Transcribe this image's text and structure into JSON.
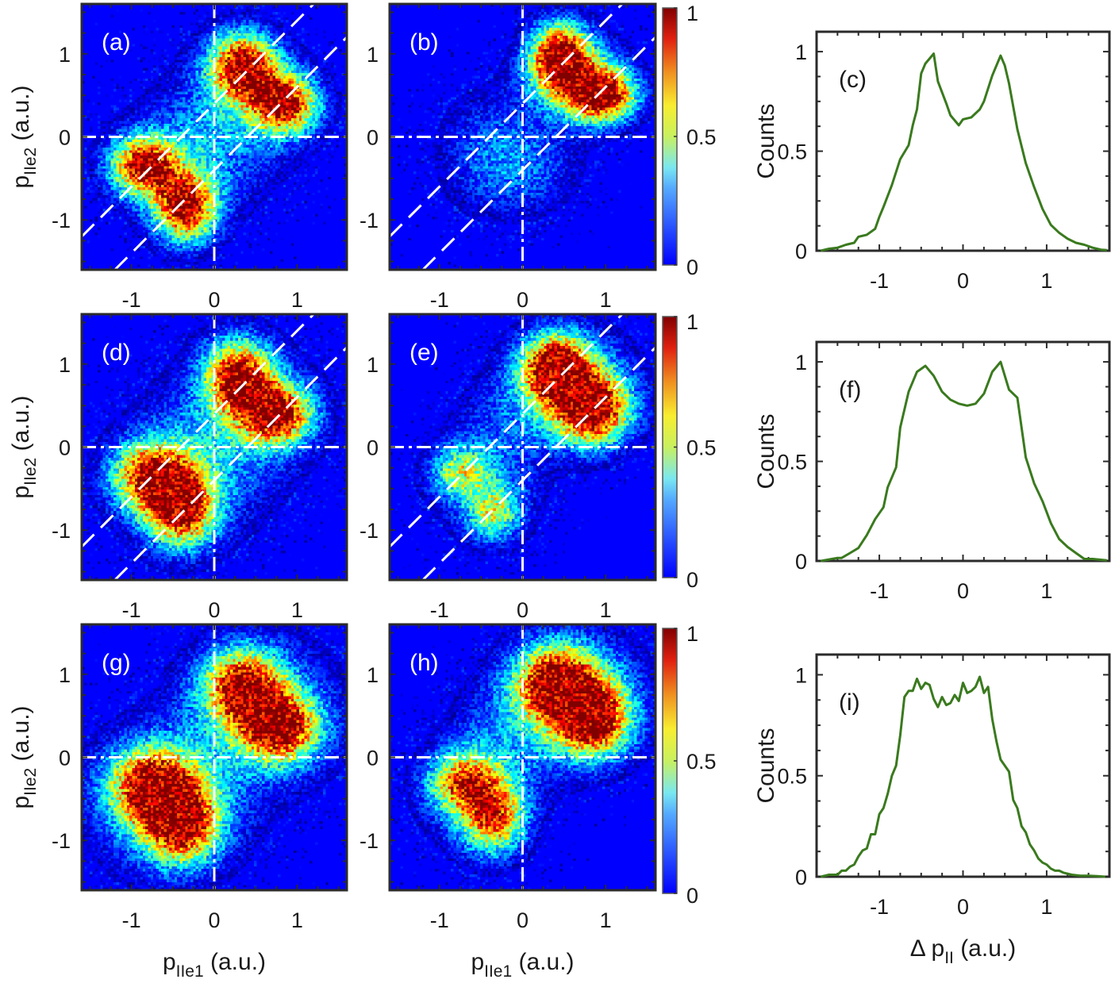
{
  "figure": {
    "heatmap_xlabel_main": "p",
    "heatmap_xlabel_sub": "IIe1",
    "heatmap_xlabel_unit": " (a.u.)",
    "heatmap_ylabel_main": "p",
    "heatmap_ylabel_sub": "IIe2",
    "heatmap_ylabel_unit": " (a.u.)",
    "line_xlabel_prefix": "Δ p",
    "line_xlabel_sub": "II",
    "line_xlabel_unit": " (a.u.)",
    "line_ylabel": "Counts",
    "line_color": "#3a7a1e",
    "guide_line_color": "#ffffff"
  },
  "chart_data": [
    {
      "panel": "(a)",
      "type": "heatmap",
      "xlabel": "p_IIe1 (a.u.)",
      "ylabel": "p_IIe2 (a.u.)",
      "xlim": [
        -1.6,
        1.6
      ],
      "ylim": [
        -1.6,
        1.6
      ],
      "xticks": [
        "-1",
        "0",
        "1"
      ],
      "yticks": [
        "-1",
        "0",
        "1"
      ],
      "colormap": "jet",
      "clim": [
        0,
        1
      ],
      "blobs": [
        {
          "x": 0.35,
          "y": 0.85,
          "sx": 0.28,
          "sy": 0.28,
          "amp": 0.95
        },
        {
          "x": 0.85,
          "y": 0.4,
          "sx": 0.28,
          "sy": 0.25,
          "amp": 0.9
        },
        {
          "x": -0.85,
          "y": -0.35,
          "sx": 0.28,
          "sy": 0.25,
          "amp": 0.9
        },
        {
          "x": -0.35,
          "y": -0.85,
          "sx": 0.25,
          "sy": 0.28,
          "amp": 0.95
        },
        {
          "x": 0.3,
          "y": 0.3,
          "sx": 0.55,
          "sy": 0.55,
          "amp": 0.2
        },
        {
          "x": -0.3,
          "y": -0.3,
          "sx": 0.55,
          "sy": 0.55,
          "amp": 0.2
        }
      ],
      "diagonal_offsets": [
        0.4,
        -0.4
      ],
      "show_colorbar": false,
      "show_diagonals": true
    },
    {
      "panel": "(b)",
      "type": "heatmap",
      "xlim": [
        -1.6,
        1.6
      ],
      "ylim": [
        -1.6,
        1.6
      ],
      "xticks": [
        "-1",
        "0",
        "1"
      ],
      "yticks": [
        "-1",
        "0",
        "1"
      ],
      "colormap": "jet",
      "clim": [
        0,
        1
      ],
      "colorbar_ticks": [
        "0",
        "0.5",
        "1"
      ],
      "blobs": [
        {
          "x": 0.45,
          "y": 0.95,
          "sx": 0.25,
          "sy": 0.28,
          "amp": 1.0
        },
        {
          "x": 0.95,
          "y": 0.5,
          "sx": 0.28,
          "sy": 0.22,
          "amp": 1.0
        },
        {
          "x": 0.65,
          "y": 0.7,
          "sx": 0.4,
          "sy": 0.35,
          "amp": 0.35
        },
        {
          "x": -0.35,
          "y": -0.2,
          "sx": 0.45,
          "sy": 0.5,
          "amp": 0.22
        },
        {
          "x": 0.2,
          "y": -0.4,
          "sx": 0.4,
          "sy": 0.35,
          "amp": 0.12
        }
      ],
      "diagonal_offsets": [
        0.4,
        -0.4
      ],
      "show_colorbar": true,
      "show_diagonals": true
    },
    {
      "panel": "(c)",
      "type": "line",
      "xlabel": "",
      "ylabel": "Counts",
      "xlim": [
        -1.75,
        1.75
      ],
      "ylim": [
        0,
        1.1
      ],
      "xticks": [
        "-1",
        "0",
        "1"
      ],
      "yticks": [
        "0",
        "0.5",
        "1"
      ],
      "x": [
        -1.7,
        -1.6,
        -1.5,
        -1.4,
        -1.3,
        -1.25,
        -1.15,
        -1.05,
        -1.0,
        -0.95,
        -0.85,
        -0.75,
        -0.65,
        -0.6,
        -0.55,
        -0.5,
        -0.45,
        -0.35,
        -0.3,
        -0.2,
        -0.15,
        -0.05,
        0.0,
        0.1,
        0.2,
        0.25,
        0.35,
        0.45,
        0.5,
        0.55,
        0.65,
        0.75,
        0.85,
        0.95,
        1.05,
        1.15,
        1.25,
        1.35,
        1.45,
        1.55,
        1.65,
        1.72
      ],
      "y": [
        0.0,
        0.01,
        0.015,
        0.03,
        0.04,
        0.07,
        0.08,
        0.11,
        0.17,
        0.22,
        0.33,
        0.46,
        0.53,
        0.63,
        0.71,
        0.89,
        0.94,
        0.99,
        0.85,
        0.74,
        0.68,
        0.63,
        0.66,
        0.67,
        0.71,
        0.75,
        0.88,
        0.98,
        0.93,
        0.84,
        0.61,
        0.44,
        0.32,
        0.21,
        0.13,
        0.09,
        0.06,
        0.04,
        0.03,
        0.015,
        0.005,
        0.003
      ],
      "color": "#3a7a1e"
    },
    {
      "panel": "(d)",
      "type": "heatmap",
      "xlabel": "",
      "ylabel": "p_IIe2 (a.u.)",
      "xlim": [
        -1.6,
        1.6
      ],
      "ylim": [
        -1.6,
        1.6
      ],
      "xticks": [
        "-1",
        "0",
        "1"
      ],
      "yticks": [
        "-1",
        "0",
        "1"
      ],
      "colormap": "jet",
      "clim": [
        0,
        1
      ],
      "blobs": [
        {
          "x": 0.3,
          "y": 0.85,
          "sx": 0.28,
          "sy": 0.3,
          "amp": 0.9
        },
        {
          "x": 0.75,
          "y": 0.4,
          "sx": 0.3,
          "sy": 0.25,
          "amp": 0.9
        },
        {
          "x": -0.75,
          "y": -0.35,
          "sx": 0.32,
          "sy": 0.28,
          "amp": 0.85
        },
        {
          "x": -0.4,
          "y": -0.75,
          "sx": 0.28,
          "sy": 0.3,
          "amp": 0.9
        },
        {
          "x": 0.35,
          "y": 0.35,
          "sx": 0.6,
          "sy": 0.6,
          "amp": 0.22
        },
        {
          "x": -0.35,
          "y": -0.35,
          "sx": 0.6,
          "sy": 0.6,
          "amp": 0.22
        }
      ],
      "diagonal_offsets": [
        0.4,
        -0.4
      ],
      "show_colorbar": false,
      "show_diagonals": true
    },
    {
      "panel": "(e)",
      "type": "heatmap",
      "xlim": [
        -1.6,
        1.6
      ],
      "ylim": [
        -1.6,
        1.6
      ],
      "xticks": [
        "-1",
        "0",
        "1"
      ],
      "yticks": [
        "-1",
        "0",
        "1"
      ],
      "colormap": "jet",
      "clim": [
        0,
        1
      ],
      "colorbar_ticks": [
        "0",
        "0.5",
        "1"
      ],
      "blobs": [
        {
          "x": 0.4,
          "y": 0.95,
          "sx": 0.28,
          "sy": 0.28,
          "amp": 0.95
        },
        {
          "x": 0.85,
          "y": 0.45,
          "sx": 0.3,
          "sy": 0.28,
          "amp": 0.9
        },
        {
          "x": 0.6,
          "y": 0.7,
          "sx": 0.5,
          "sy": 0.45,
          "amp": 0.4
        },
        {
          "x": -0.75,
          "y": -0.3,
          "sx": 0.25,
          "sy": 0.22,
          "amp": 0.45
        },
        {
          "x": -0.35,
          "y": -0.8,
          "sx": 0.22,
          "sy": 0.22,
          "amp": 0.45
        },
        {
          "x": -0.4,
          "y": -0.5,
          "sx": 0.45,
          "sy": 0.45,
          "amp": 0.18
        },
        {
          "x": -0.3,
          "y": 0.3,
          "sx": 0.4,
          "sy": 0.4,
          "amp": 0.12
        }
      ],
      "diagonal_offsets": [
        0.4,
        -0.4
      ],
      "show_colorbar": true,
      "show_diagonals": true
    },
    {
      "panel": "(f)",
      "type": "line",
      "xlabel": "",
      "ylabel": "Counts",
      "xlim": [
        -1.75,
        1.75
      ],
      "ylim": [
        0,
        1.1
      ],
      "xticks": [
        "-1",
        "0",
        "1"
      ],
      "yticks": [
        "0",
        "0.5",
        "1"
      ],
      "x": [
        -1.7,
        -1.5,
        -1.45,
        -1.35,
        -1.25,
        -1.15,
        -1.05,
        -0.95,
        -0.9,
        -0.8,
        -0.75,
        -0.65,
        -0.55,
        -0.45,
        -0.35,
        -0.25,
        -0.15,
        -0.05,
        0.05,
        0.15,
        0.25,
        0.35,
        0.45,
        0.55,
        0.65,
        0.75,
        0.85,
        0.95,
        1.05,
        1.15,
        1.25,
        1.35,
        1.45,
        1.55,
        1.72
      ],
      "y": [
        0.0,
        0.015,
        0.015,
        0.04,
        0.065,
        0.13,
        0.21,
        0.27,
        0.37,
        0.47,
        0.67,
        0.85,
        0.95,
        0.98,
        0.93,
        0.85,
        0.81,
        0.79,
        0.78,
        0.79,
        0.84,
        0.95,
        1.0,
        0.86,
        0.82,
        0.52,
        0.39,
        0.3,
        0.19,
        0.11,
        0.07,
        0.04,
        0.01,
        0.01,
        0.003
      ],
      "color": "#3a7a1e"
    },
    {
      "panel": "(g)",
      "type": "heatmap",
      "xlabel": "p_IIe1 (a.u.)",
      "ylabel": "p_IIe2 (a.u.)",
      "xlim": [
        -1.6,
        1.6
      ],
      "ylim": [
        -1.6,
        1.6
      ],
      "xticks": [
        "-1",
        "0",
        "1"
      ],
      "yticks": [
        "-1",
        "0",
        "1"
      ],
      "colormap": "jet",
      "clim": [
        0,
        1
      ],
      "blobs": [
        {
          "x": 0.35,
          "y": 0.85,
          "sx": 0.32,
          "sy": 0.3,
          "amp": 0.85
        },
        {
          "x": 0.8,
          "y": 0.35,
          "sx": 0.32,
          "sy": 0.28,
          "amp": 0.85
        },
        {
          "x": -0.75,
          "y": -0.35,
          "sx": 0.35,
          "sy": 0.32,
          "amp": 0.85
        },
        {
          "x": -0.4,
          "y": -0.8,
          "sx": 0.3,
          "sy": 0.32,
          "amp": 0.85
        },
        {
          "x": 0.55,
          "y": 0.55,
          "sx": 0.65,
          "sy": 0.6,
          "amp": 0.3
        },
        {
          "x": -0.55,
          "y": -0.55,
          "sx": 0.65,
          "sy": 0.6,
          "amp": 0.3
        }
      ],
      "show_colorbar": false,
      "show_diagonals": false
    },
    {
      "panel": "(h)",
      "type": "heatmap",
      "xlabel": "p_IIe1 (a.u.)",
      "xlim": [
        -1.6,
        1.6
      ],
      "ylim": [
        -1.6,
        1.6
      ],
      "xticks": [
        "-1",
        "0",
        "1"
      ],
      "yticks": [
        "-1",
        "0",
        "1"
      ],
      "colormap": "jet",
      "clim": [
        0,
        1
      ],
      "colorbar_ticks": [
        "0",
        "0.5",
        "1"
      ],
      "blobs": [
        {
          "x": 0.4,
          "y": 0.9,
          "sx": 0.32,
          "sy": 0.3,
          "amp": 0.85
        },
        {
          "x": 0.85,
          "y": 0.45,
          "sx": 0.3,
          "sy": 0.3,
          "amp": 0.85
        },
        {
          "x": 0.6,
          "y": 0.7,
          "sx": 0.55,
          "sy": 0.5,
          "amp": 0.45
        },
        {
          "x": -0.7,
          "y": -0.3,
          "sx": 0.3,
          "sy": 0.25,
          "amp": 0.65
        },
        {
          "x": -0.35,
          "y": -0.75,
          "sx": 0.25,
          "sy": 0.28,
          "amp": 0.65
        },
        {
          "x": -0.5,
          "y": -0.5,
          "sx": 0.45,
          "sy": 0.45,
          "amp": 0.25
        },
        {
          "x": -0.3,
          "y": 0.3,
          "sx": 0.45,
          "sy": 0.45,
          "amp": 0.12
        }
      ],
      "show_colorbar": true,
      "show_diagonals": false
    },
    {
      "panel": "(i)",
      "type": "line",
      "xlabel": "Δ p_II (a.u.)",
      "ylabel": "Counts",
      "xlim": [
        -1.75,
        1.75
      ],
      "ylim": [
        0,
        1.1
      ],
      "xticks": [
        "-1",
        "0",
        "1"
      ],
      "yticks": [
        "0",
        "0.5",
        "1"
      ],
      "x": [
        -1.7,
        -1.6,
        -1.55,
        -1.5,
        -1.45,
        -1.4,
        -1.35,
        -1.3,
        -1.25,
        -1.2,
        -1.15,
        -1.1,
        -1.05,
        -1.0,
        -0.95,
        -0.9,
        -0.85,
        -0.8,
        -0.75,
        -0.7,
        -0.65,
        -0.6,
        -0.55,
        -0.5,
        -0.45,
        -0.4,
        -0.35,
        -0.3,
        -0.25,
        -0.2,
        -0.15,
        -0.1,
        -0.05,
        0.0,
        0.05,
        0.1,
        0.15,
        0.2,
        0.25,
        0.3,
        0.35,
        0.4,
        0.45,
        0.5,
        0.55,
        0.6,
        0.65,
        0.7,
        0.75,
        0.8,
        0.85,
        0.9,
        0.95,
        1.0,
        1.05,
        1.1,
        1.15,
        1.2,
        1.3,
        1.4,
        1.5,
        1.6,
        1.7
      ],
      "y": [
        0.0,
        0.01,
        0.01,
        0.01,
        0.03,
        0.03,
        0.05,
        0.06,
        0.1,
        0.13,
        0.14,
        0.21,
        0.21,
        0.31,
        0.34,
        0.41,
        0.5,
        0.55,
        0.7,
        0.89,
        0.92,
        0.92,
        0.98,
        0.93,
        0.96,
        0.95,
        0.88,
        0.84,
        0.89,
        0.85,
        0.86,
        0.9,
        0.87,
        0.96,
        0.91,
        0.92,
        0.94,
        0.99,
        0.91,
        0.94,
        0.78,
        0.67,
        0.58,
        0.55,
        0.52,
        0.38,
        0.34,
        0.25,
        0.22,
        0.16,
        0.13,
        0.09,
        0.07,
        0.06,
        0.04,
        0.03,
        0.03,
        0.02,
        0.01,
        0.005,
        0.005,
        0.003,
        0.0
      ],
      "color": "#3a7a1e"
    }
  ]
}
